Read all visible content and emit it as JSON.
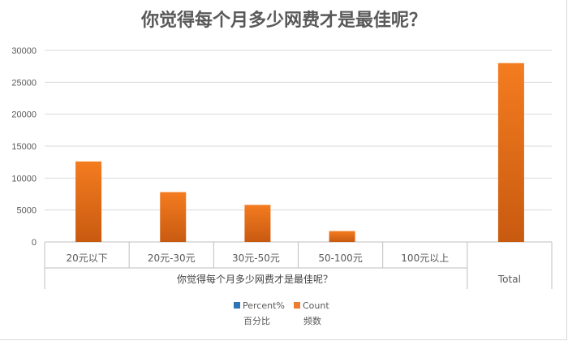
{
  "chart_data": {
    "type": "bar",
    "title": "你觉得每个月多少网费才是最佳呢？",
    "group_label": "你觉得每个月多少网费才是最佳呢？",
    "categories": [
      "20元以下",
      "20元-30元",
      "30元-50元",
      "50-100元",
      "100元以上",
      "Total"
    ],
    "series": [
      {
        "name": "Percent%",
        "sub_label": "百分比",
        "color": "#2e75b6",
        "values": [
          0,
          0,
          0,
          0,
          0,
          0
        ]
      },
      {
        "name": "Count",
        "sub_label": "频数",
        "color": "#ed7d31",
        "values": [
          12600,
          7800,
          5800,
          1700,
          0,
          28000
        ]
      }
    ],
    "ylim": [
      0,
      30000
    ],
    "yticks": [
      0,
      5000,
      10000,
      15000,
      20000,
      25000,
      30000
    ],
    "grid": true,
    "legend": "bottom"
  }
}
